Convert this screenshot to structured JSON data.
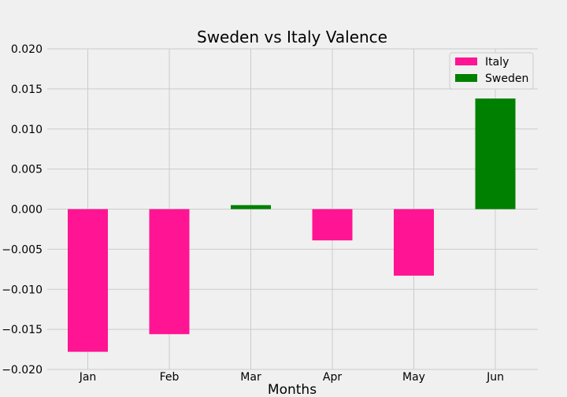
{
  "chart_data": {
    "type": "bar",
    "title": "Sweden vs Italy Valence",
    "xlabel": "Months",
    "ylabel": "",
    "categories": [
      "Jan",
      "Feb",
      "Mar",
      "Apr",
      "May",
      "Jun"
    ],
    "values": [
      -0.0178,
      -0.0156,
      0.0005,
      -0.0039,
      -0.0083,
      0.0138
    ],
    "bar_series": [
      "Italy",
      "Italy",
      "Sweden",
      "Italy",
      "Italy",
      "Sweden"
    ],
    "series": [
      {
        "name": "Italy",
        "color": "#ff1493"
      },
      {
        "name": "Sweden",
        "color": "#008000"
      }
    ],
    "ylim": [
      -0.02,
      0.02
    ],
    "yticks": [
      -0.02,
      -0.015,
      -0.01,
      -0.005,
      0.0,
      0.005,
      0.01,
      0.015,
      0.02
    ],
    "ytick_labels": [
      "−0.020",
      "−0.015",
      "−0.010",
      "−0.005",
      "0.000",
      "0.005",
      "0.010",
      "0.015",
      "0.020"
    ],
    "grid": true,
    "legend_position": "top-right"
  }
}
